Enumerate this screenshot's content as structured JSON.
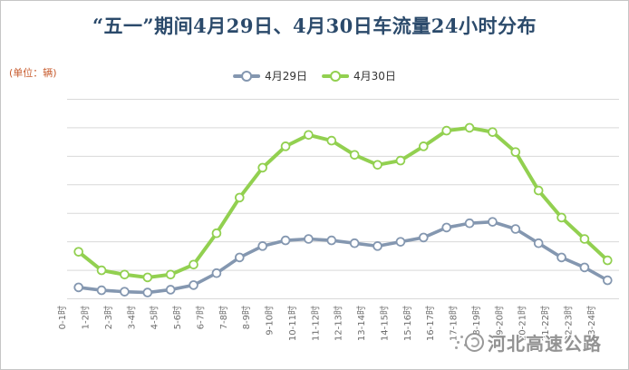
{
  "chart_data": {
    "type": "line",
    "title": "“五一”期间4月29日、4月30日车流量24小时分布",
    "unit_label": "(单位：辆)",
    "categories": [
      "0-1时",
      "1-2时",
      "2-3时",
      "3-4时",
      "4-5时",
      "5-6时",
      "6-7时",
      "7-8时",
      "8-9时",
      "9-10时",
      "10-11时",
      "11-12时",
      "12-13时",
      "13-14时",
      "14-15时",
      "15-16时",
      "16-17时",
      "17-18时",
      "18-19时",
      "19-20时",
      "20-21时",
      "21-22时",
      "22-23时",
      "23-24时"
    ],
    "series": [
      {
        "name": "4月29日",
        "color": "#8497b0",
        "marker": "circle-open",
        "values": [
          0.4,
          0.3,
          0.25,
          0.22,
          0.32,
          0.48,
          0.9,
          1.45,
          1.85,
          2.05,
          2.1,
          2.05,
          1.95,
          1.85,
          2.0,
          2.15,
          2.5,
          2.65,
          2.7,
          2.45,
          1.95,
          1.45,
          1.1,
          0.65
        ]
      },
      {
        "name": "4月30日",
        "color": "#92d050",
        "marker": "circle-open",
        "values": [
          1.65,
          1.0,
          0.85,
          0.75,
          0.85,
          1.2,
          2.3,
          3.55,
          4.6,
          5.35,
          5.75,
          5.55,
          5.05,
          4.7,
          4.85,
          5.35,
          5.9,
          6.0,
          5.85,
          5.15,
          3.8,
          2.85,
          2.1,
          1.35
        ]
      }
    ],
    "xlabel": "",
    "ylabel": "",
    "ylim": [
      0,
      7
    ],
    "y_axis": {
      "tick_labels_visible": false,
      "gridlines": 8,
      "unit": "relative gridline units (axis unlabeled)"
    },
    "legend_position": "top-center",
    "grid": "horizontal",
    "x_label_rotation": -90
  },
  "watermark": {
    "text": "河北高速公路"
  },
  "colors": {
    "title": "#2b4a6b",
    "unit_label": "#c75b2d",
    "gridline": "#d9d9d9",
    "axis_label": "#6e6e6e",
    "background": "#ffffff"
  }
}
